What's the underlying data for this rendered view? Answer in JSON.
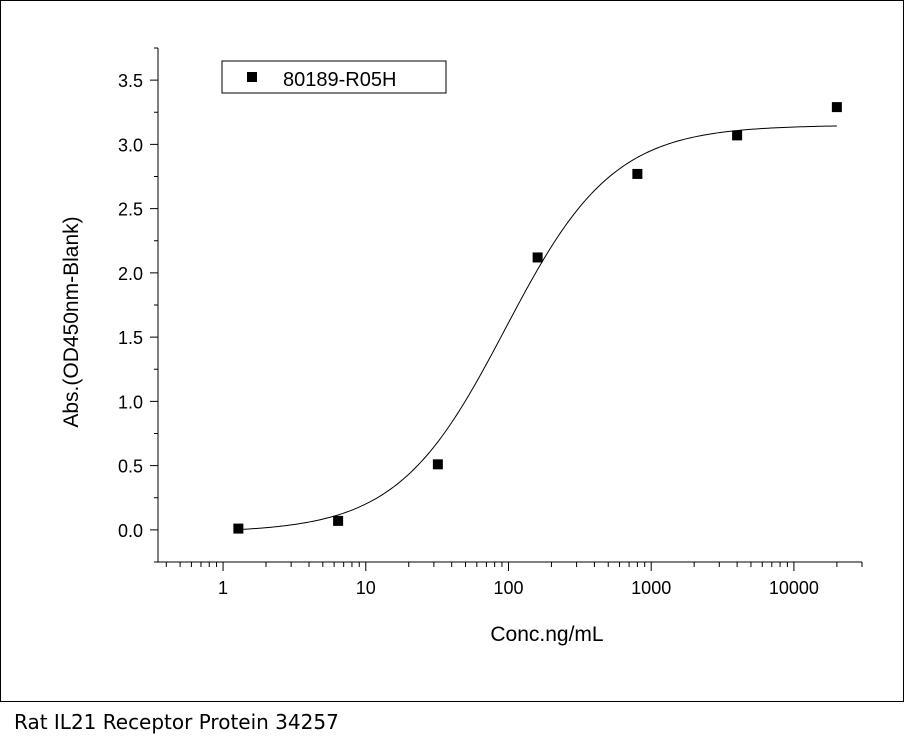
{
  "caption": "Rat IL21 Receptor Protein 34257",
  "chart_data": {
    "type": "scatter",
    "title": "",
    "xlabel": "Conc.ng/mL",
    "ylabel": "Abs.(OD450nm-Blank)",
    "xscale": "log",
    "xlim": [
      0.35,
      30000
    ],
    "ylim": [
      -0.25,
      3.75
    ],
    "x_ticks": [
      1,
      10,
      100,
      1000,
      10000
    ],
    "x_tick_labels": [
      "1",
      "10",
      "100",
      "1000",
      "10000"
    ],
    "y_ticks": [
      0,
      0.5,
      1,
      1.5,
      2,
      2.5,
      3,
      3.5
    ],
    "y_tick_labels": [
      "0.0",
      "0.5",
      "1.0",
      "1.5",
      "2.0",
      "2.5",
      "3.0",
      "3.5"
    ],
    "grid": false,
    "legend_position": "top-left",
    "series": [
      {
        "name": "80189-R05H",
        "marker": "square",
        "color": "#000000",
        "x": [
          1.28,
          6.4,
          32,
          160,
          800,
          4000,
          20000
        ],
        "y": [
          0.01,
          0.07,
          0.51,
          2.12,
          2.77,
          3.07,
          3.29
        ]
      }
    ],
    "fit_curve": {
      "model": "4PL",
      "bottom": -0.02,
      "top": 3.15,
      "ec50": 95,
      "hill": 1.15,
      "x_range": [
        1.28,
        20000
      ]
    }
  }
}
